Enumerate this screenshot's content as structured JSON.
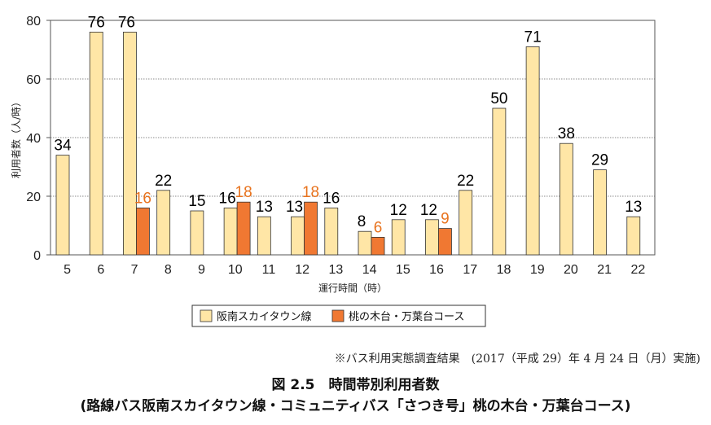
{
  "chart_data": {
    "type": "bar",
    "categories": [
      "5",
      "6",
      "7",
      "8",
      "9",
      "10",
      "11",
      "12",
      "13",
      "14",
      "15",
      "16",
      "17",
      "18",
      "19",
      "20",
      "21",
      "22"
    ],
    "series": [
      {
        "name": "阪南スカイタウン線",
        "color": "#FFE6A6",
        "values": [
          34,
          76,
          76,
          22,
          15,
          16,
          13,
          13,
          16,
          8,
          12,
          12,
          22,
          50,
          71,
          38,
          29,
          13
        ]
      },
      {
        "name": "桃の木台・万葉台コース",
        "color": "#F07832",
        "values": [
          null,
          null,
          16,
          null,
          null,
          18,
          null,
          18,
          null,
          6,
          null,
          9,
          null,
          null,
          null,
          null,
          null,
          null
        ]
      }
    ],
    "ylim": [
      0,
      80
    ],
    "yticks": [
      0,
      20,
      40,
      60,
      80
    ],
    "xlabel": "運行時間（時）",
    "ylabel": "利用者数（人/時）",
    "grid": true,
    "legend": "bottom",
    "label_colors": {
      "series1": "#000000",
      "series2": "#E8731E"
    }
  },
  "note": "※バス利用実態調査結果　(2017（平成 29）年 4 月 24 日（月）実施)",
  "caption": {
    "title": "図 2.5　時間帯別利用者数",
    "subtitle": "(路線バス阪南スカイタウン線・コミュニティバス「さつき号」桃の木台・万葉台コース)"
  }
}
